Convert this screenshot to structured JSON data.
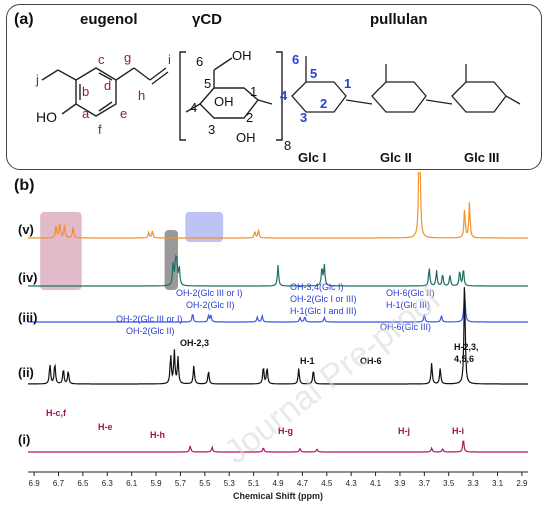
{
  "panel_a": {
    "label": "(a)",
    "titles": [
      "eugenol",
      "γCD",
      "pullulan"
    ],
    "eugenol_atoms": [
      "j",
      "b",
      "c",
      "d",
      "g",
      "i",
      "h",
      "a",
      "f",
      "e"
    ],
    "eugenol_oh": "HO",
    "cd_numbers": [
      "6",
      "5",
      "4",
      "3",
      "2",
      "1"
    ],
    "cd_oh": [
      "OH",
      "OH",
      "OH"
    ],
    "cd_subscript": "8",
    "pullulan_numbers": [
      "6",
      "5",
      "4",
      "3",
      "2",
      "1"
    ],
    "units": [
      "Glc I",
      "Glc II",
      "Glc III"
    ]
  },
  "panel_b": {
    "label": "(b)",
    "traces": [
      {
        "label": "(v)",
        "color": "#f0922b"
      },
      {
        "label": "(iv)",
        "color": "#1f6f66"
      },
      {
        "label": "(iii)",
        "color": "#3b55e6"
      },
      {
        "label": "(ii)",
        "color": "#111111"
      },
      {
        "label": "(i)",
        "color": "#b01467"
      }
    ],
    "annotations": {
      "iii": [
        "OH-2(Glc III or I)",
        "OH-2(Glc II)",
        "OH-2(Glc III or I)",
        "OH-2(Glc II)",
        "OH-3,4(Glc I)",
        "OH-2(Glc I or III)",
        "H-1(Glc I and III)",
        "OH-6(Glc II)",
        "H-1(Glc III)",
        "OH-6(Glc III)"
      ],
      "ii": [
        "OH-2,3",
        "H-1",
        "OH-6",
        "H-2,3,",
        "4,5,6"
      ],
      "i": [
        "H-c,f",
        "H-e",
        "H-h",
        "H-g",
        "H-j",
        "H-i"
      ]
    },
    "watermark": "Journal Pre-proof"
  },
  "chart_data": {
    "type": "line",
    "xlabel": "Chemical Shift (ppm)",
    "xlim": [
      6.95,
      2.85
    ],
    "x_ticks": [
      "6.9",
      "6.7",
      "6.5",
      "6.3",
      "6.1",
      "5.9",
      "5.7",
      "5.5",
      "5.3",
      "5.1",
      "4.9",
      "4.7",
      "4.5",
      "4.3",
      "4.1",
      "3.9",
      "3.7",
      "3.5",
      "3.3",
      "3.1",
      "2.9"
    ],
    "highlight_regions": [
      {
        "from": 6.85,
        "to": 6.51,
        "color": "#d9a3b8"
      },
      {
        "from": 5.83,
        "to": 5.72,
        "color": "#777777"
      },
      {
        "from": 5.66,
        "to": 5.35,
        "color": "#a9aef0"
      }
    ],
    "series": [
      {
        "peaks": [
          [
            6.72,
            0.55
          ],
          [
            6.69,
            0.7
          ],
          [
            6.65,
            0.6
          ],
          [
            6.58,
            0.5
          ],
          [
            5.96,
            0.25
          ],
          [
            5.93,
            0.32
          ],
          [
            5.09,
            0.3
          ],
          [
            5.06,
            0.36
          ],
          [
            3.74,
            6.8
          ],
          [
            3.37,
            1.3
          ],
          [
            3.33,
            1.6
          ]
        ]
      },
      {
        "peaks": [
          [
            5.76,
            1.0
          ],
          [
            5.74,
            1.05
          ],
          [
            5.73,
            0.95
          ],
          [
            5.71,
            0.85
          ],
          [
            4.9,
            0.95
          ],
          [
            4.54,
            0.85
          ],
          [
            4.52,
            0.95
          ],
          [
            3.66,
            0.85
          ],
          [
            3.6,
            0.7
          ],
          [
            3.55,
            0.55
          ],
          [
            3.49,
            0.5
          ],
          [
            3.41,
            0.7
          ],
          [
            3.38,
            0.8
          ]
        ]
      },
      {
        "peaks": [
          [
            5.6,
            0.4
          ],
          [
            5.47,
            0.3
          ],
          [
            5.45,
            0.3
          ],
          [
            5.07,
            0.22
          ],
          [
            5.03,
            0.28
          ],
          [
            4.72,
            0.2
          ],
          [
            4.68,
            0.24
          ],
          [
            4.52,
            0.2
          ],
          [
            3.7,
            0.35
          ],
          [
            3.56,
            0.3
          ],
          [
            3.37,
            1.6
          ]
        ]
      },
      {
        "peaks": [
          [
            6.77,
            0.9
          ],
          [
            6.73,
            0.95
          ],
          [
            6.66,
            0.7
          ],
          [
            6.62,
            0.6
          ],
          [
            5.78,
            1.3
          ],
          [
            5.75,
            1.5
          ],
          [
            5.72,
            1.2
          ],
          [
            5.59,
            0.85
          ],
          [
            5.47,
            0.6
          ],
          [
            5.02,
            0.8
          ],
          [
            4.99,
            0.75
          ],
          [
            4.73,
            0.7
          ],
          [
            4.61,
            0.65
          ],
          [
            3.64,
            0.95
          ],
          [
            3.57,
            0.7
          ],
          [
            3.37,
            4.6
          ]
        ]
      },
      {
        "peaks": [
          [
            5.62,
            0.28
          ],
          [
            5.44,
            0.22
          ],
          [
            5.02,
            0.2
          ],
          [
            4.72,
            0.16
          ],
          [
            4.58,
            0.14
          ],
          [
            3.64,
            0.18
          ],
          [
            3.55,
            0.16
          ],
          [
            3.38,
            0.6
          ]
        ]
      }
    ]
  }
}
